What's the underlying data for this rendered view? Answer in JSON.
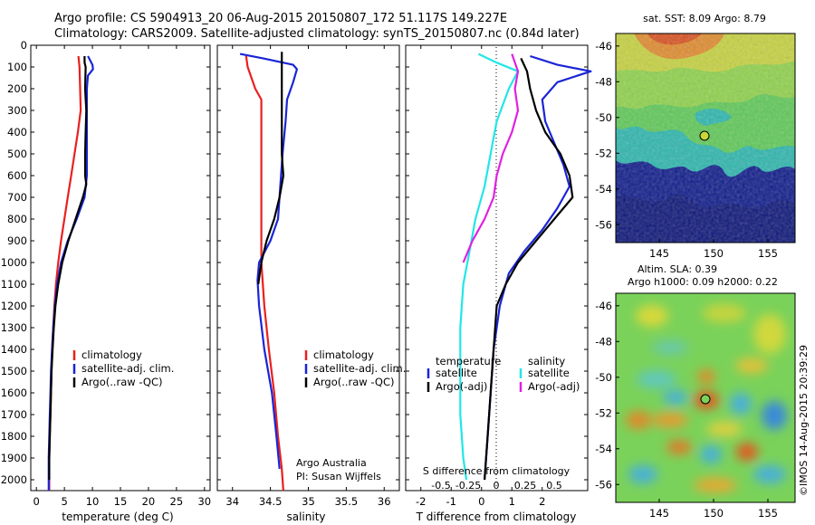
{
  "header": {
    "line1": "Argo profile: CS 5904913_20 06-Aug-2015 20150807_172 51.117S 149.227E",
    "line2": "Climatology: CARS2009. Satellite-adjusted climatology: synTS_20150807.nc (0.84d later)"
  },
  "credit": "©IMOS 14-Aug-2015 20:39:29",
  "colors": {
    "climatology": "#e8201e",
    "satellite": "#1a25d6",
    "argo": "#000000",
    "sat_salinity": "#22e6e6",
    "argo_salinity": "#e020e0"
  },
  "chart_data": [
    {
      "type": "line",
      "panel": "temperature",
      "xlabel": "temperature (deg C)",
      "ylabel": "",
      "xlim": [
        -1,
        31
      ],
      "ylim": [
        2050,
        0
      ],
      "xticks": [
        0,
        5,
        10,
        15,
        20,
        25,
        30
      ],
      "yticks": [
        0,
        100,
        200,
        300,
        400,
        500,
        600,
        700,
        800,
        900,
        1000,
        1100,
        1200,
        1300,
        1400,
        1500,
        1600,
        1700,
        1800,
        1900,
        2000
      ],
      "legend": [
        "climatology",
        "satellite-adj. clim.",
        "Argo(..raw -QC)"
      ],
      "series": [
        {
          "name": "climatology",
          "color": "#e8201e",
          "points": [
            [
              7.5,
              50
            ],
            [
              7.7,
              100
            ],
            [
              7.8,
              200
            ],
            [
              7.9,
              300
            ],
            [
              7.4,
              400
            ],
            [
              6.8,
              500
            ],
            [
              6.2,
              600
            ],
            [
              5.6,
              700
            ],
            [
              5.0,
              800
            ],
            [
              4.4,
              900
            ],
            [
              3.9,
              1000
            ],
            [
              3.5,
              1100
            ],
            [
              3.2,
              1200
            ],
            [
              3.0,
              1300
            ],
            [
              2.8,
              1400
            ],
            [
              2.7,
              1500
            ],
            [
              2.6,
              1600
            ],
            [
              2.5,
              1700
            ],
            [
              2.4,
              1800
            ],
            [
              2.3,
              1900
            ],
            [
              2.3,
              2000
            ],
            [
              2.3,
              2050
            ]
          ]
        },
        {
          "name": "satellite-adj. clim.",
          "color": "#1a25d6",
          "points": [
            [
              9.2,
              50
            ],
            [
              9.6,
              70
            ],
            [
              10.0,
              90
            ],
            [
              10.1,
              110
            ],
            [
              9.2,
              140
            ],
            [
              9.0,
              200
            ],
            [
              9.0,
              300
            ],
            [
              9.0,
              400
            ],
            [
              9.0,
              500
            ],
            [
              9.0,
              600
            ],
            [
              8.6,
              700
            ],
            [
              7.2,
              800
            ],
            [
              5.6,
              900
            ],
            [
              4.4,
              1000
            ],
            [
              3.7,
              1100
            ],
            [
              3.3,
              1200
            ],
            [
              3.0,
              1300
            ],
            [
              2.8,
              1400
            ],
            [
              2.6,
              1500
            ],
            [
              2.5,
              1600
            ],
            [
              2.4,
              1700
            ],
            [
              2.3,
              1800
            ],
            [
              2.2,
              1900
            ],
            [
              2.2,
              2000
            ],
            [
              2.2,
              2050
            ]
          ]
        },
        {
          "name": "Argo(..raw -QC)",
          "color": "#000000",
          "points": [
            [
              8.6,
              50
            ],
            [
              8.6,
              80
            ],
            [
              8.8,
              100
            ],
            [
              8.7,
              200
            ],
            [
              8.9,
              300
            ],
            [
              8.8,
              400
            ],
            [
              8.7,
              500
            ],
            [
              8.7,
              600
            ],
            [
              8.9,
              640
            ],
            [
              8.3,
              700
            ],
            [
              7.0,
              800
            ],
            [
              5.7,
              900
            ],
            [
              4.6,
              1000
            ],
            [
              3.9,
              1100
            ],
            [
              3.4,
              1200
            ],
            [
              3.1,
              1300
            ],
            [
              2.9,
              1400
            ],
            [
              2.7,
              1500
            ],
            [
              2.6,
              1600
            ],
            [
              2.5,
              1700
            ],
            [
              2.4,
              1800
            ],
            [
              2.3,
              1900
            ],
            [
              2.3,
              2000
            ]
          ]
        }
      ]
    },
    {
      "type": "line",
      "panel": "salinity",
      "xlabel": "salinity",
      "xlim": [
        33.8,
        36.2
      ],
      "ylim": [
        2050,
        0
      ],
      "xticks": [
        34,
        34.5,
        35,
        35.5,
        36
      ],
      "legend": [
        "climatology",
        "satellite-adj. clim.",
        "Argo(..raw -QC)"
      ],
      "annotation": [
        "Argo Australia",
        "PI: Susan Wijffels"
      ],
      "series": [
        {
          "name": "climatology",
          "color": "#e8201e",
          "points": [
            [
              34.18,
              50
            ],
            [
              34.2,
              100
            ],
            [
              34.3,
              200
            ],
            [
              34.38,
              250
            ],
            [
              34.38,
              400
            ],
            [
              34.38,
              600
            ],
            [
              34.38,
              800
            ],
            [
              34.38,
              1000
            ],
            [
              34.42,
              1200
            ],
            [
              34.48,
              1400
            ],
            [
              34.55,
              1600
            ],
            [
              34.6,
              1800
            ],
            [
              34.65,
              1950
            ],
            [
              34.67,
              2050
            ]
          ]
        },
        {
          "name": "satellite-adj. clim.",
          "color": "#1a25d6",
          "points": [
            [
              34.1,
              40
            ],
            [
              34.4,
              60
            ],
            [
              34.8,
              90
            ],
            [
              34.85,
              110
            ],
            [
              34.8,
              170
            ],
            [
              34.72,
              250
            ],
            [
              34.7,
              350
            ],
            [
              34.66,
              500
            ],
            [
              34.63,
              650
            ],
            [
              34.6,
              800
            ],
            [
              34.5,
              900
            ],
            [
              34.35,
              1000
            ],
            [
              34.33,
              1080
            ],
            [
              34.35,
              1200
            ],
            [
              34.42,
              1400
            ],
            [
              34.52,
              1600
            ],
            [
              34.58,
              1800
            ],
            [
              34.62,
              1950
            ]
          ]
        },
        {
          "name": "Argo(..raw -QC)",
          "color": "#000000",
          "points": [
            [
              34.65,
              30
            ],
            [
              34.65,
              100
            ],
            [
              34.65,
              200
            ],
            [
              34.65,
              300
            ],
            [
              34.65,
              400
            ],
            [
              34.65,
              500
            ],
            [
              34.67,
              600
            ],
            [
              34.62,
              700
            ],
            [
              34.55,
              800
            ],
            [
              34.45,
              900
            ],
            [
              34.38,
              1000
            ],
            [
              34.34,
              1100
            ]
          ]
        }
      ]
    },
    {
      "type": "line",
      "panel": "difference",
      "xlabel": "T difference from climatology",
      "xlim": [
        -2.5,
        3.5
      ],
      "ylim": [
        2050,
        0
      ],
      "xticks": [
        -2,
        -1,
        0,
        1,
        2
      ],
      "secondary_axis_label": "S difference from climatology",
      "secondary_ticks": [
        "-0.5",
        "-0.25",
        "0",
        "0.25",
        "0.5"
      ],
      "legend_temperature": {
        "title": "temperature",
        "items": [
          "satellite",
          "Argo(-adj)"
        ]
      },
      "legend_salinity": {
        "title": "salinity",
        "items": [
          "satellite",
          "Argo(-adj)"
        ]
      },
      "series": [
        {
          "name": "temperature satellite",
          "color": "#1a25d6",
          "points": [
            [
              1.6,
              50
            ],
            [
              2.5,
              90
            ],
            [
              3.6,
              120
            ],
            [
              2.5,
              170
            ],
            [
              2.0,
              250
            ],
            [
              2.1,
              350
            ],
            [
              2.4,
              450
            ],
            [
              2.7,
              550
            ],
            [
              2.9,
              650
            ],
            [
              2.5,
              750
            ],
            [
              2.0,
              850
            ],
            [
              1.4,
              950
            ],
            [
              0.9,
              1050
            ],
            [
              0.6,
              1200
            ],
            [
              0.4,
              1400
            ],
            [
              0.3,
              1600
            ],
            [
              0.2,
              1800
            ],
            [
              0.1,
              2000
            ]
          ]
        },
        {
          "name": "temperature Argo(-adj)",
          "color": "#000000",
          "points": [
            [
              1.3,
              60
            ],
            [
              1.5,
              120
            ],
            [
              1.6,
              200
            ],
            [
              1.8,
              300
            ],
            [
              2.1,
              400
            ],
            [
              2.6,
              500
            ],
            [
              2.9,
              600
            ],
            [
              3.0,
              700
            ],
            [
              2.4,
              800
            ],
            [
              1.8,
              900
            ],
            [
              1.2,
              1000
            ],
            [
              0.8,
              1100
            ],
            [
              0.5,
              1200
            ],
            [
              0.4,
              1400
            ],
            [
              0.3,
              1600
            ],
            [
              0.2,
              1800
            ],
            [
              0.1,
              2000
            ]
          ]
        },
        {
          "name": "salinity satellite",
          "color": "#22e6e6",
          "points": [
            [
              -0.1,
              40
            ],
            [
              0.5,
              80
            ],
            [
              1.2,
              120
            ],
            [
              0.9,
              200
            ],
            [
              0.5,
              350
            ],
            [
              0.3,
              500
            ],
            [
              0.1,
              650
            ],
            [
              -0.2,
              800
            ],
            [
              -0.4,
              950
            ],
            [
              -0.6,
              1100
            ],
            [
              -0.7,
              1300
            ],
            [
              -0.7,
              1500
            ],
            [
              -0.7,
              1700
            ],
            [
              -0.6,
              1900
            ],
            [
              -0.5,
              2000
            ]
          ]
        },
        {
          "name": "salinity Argo(-adj)",
          "color": "#e020e0",
          "points": [
            [
              1.0,
              40
            ],
            [
              1.2,
              120
            ],
            [
              1.1,
              200
            ],
            [
              1.2,
              300
            ],
            [
              1.0,
              400
            ],
            [
              0.7,
              500
            ],
            [
              0.5,
              600
            ],
            [
              0.4,
              700
            ],
            [
              0.1,
              800
            ],
            [
              -0.3,
              900
            ],
            [
              -0.6,
              1000
            ]
          ]
        }
      ]
    },
    {
      "type": "heatmap",
      "panel": "sst-map",
      "title": "sat. SST: 8.09 Argo: 8.79",
      "xlim": [
        141,
        157.5
      ],
      "ylim": [
        -57,
        -45.3
      ],
      "xticks": [
        145,
        150,
        155
      ],
      "yticks": [
        -46,
        -48,
        -50,
        -52,
        -54,
        -56
      ],
      "argo_position": [
        149.227,
        -51.117
      ]
    },
    {
      "type": "heatmap",
      "panel": "sla-map",
      "title": "Altim. SLA: 0.39",
      "subtitle": "Argo h1000: 0.09 h2000: 0.22",
      "xlim": [
        141,
        157.5
      ],
      "ylim": [
        -57,
        -45.3
      ],
      "xticks": [
        145,
        150,
        155
      ],
      "yticks": [
        -46,
        -48,
        -50,
        -52,
        -54,
        -56
      ],
      "argo_position": [
        149.227,
        -51.117
      ]
    }
  ]
}
